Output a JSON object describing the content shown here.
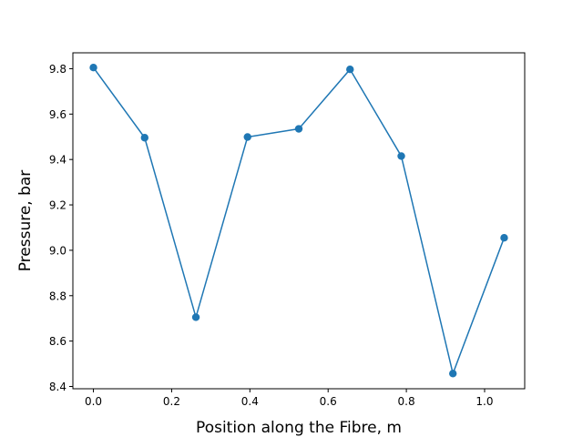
{
  "chart_data": {
    "type": "line",
    "title": "",
    "xlabel": "Position along the Fibre, m",
    "ylabel": "Pressure, bar",
    "xlim": [
      -0.0525,
      1.1025
    ],
    "ylim": [
      8.39,
      9.87
    ],
    "xticks": [
      0.0,
      0.2,
      0.4,
      0.6,
      0.8,
      1.0
    ],
    "xtick_labels": [
      "0.0",
      "0.2",
      "0.4",
      "0.6",
      "0.8",
      "1.0"
    ],
    "yticks": [
      8.4,
      8.6,
      8.8,
      9.0,
      9.2,
      9.4,
      9.6,
      9.8
    ],
    "ytick_labels": [
      "8.4",
      "8.6",
      "8.8",
      "9.0",
      "9.2",
      "9.4",
      "9.6",
      "9.8"
    ],
    "grid": false,
    "series": [
      {
        "color": "#1f77b4",
        "marker": "circle",
        "x": [
          0.0,
          0.131,
          0.262,
          0.394,
          0.525,
          0.656,
          0.787,
          0.919,
          1.05
        ],
        "y": [
          9.805,
          9.496,
          8.705,
          9.499,
          9.535,
          9.797,
          9.415,
          8.457,
          9.055
        ]
      }
    ]
  }
}
